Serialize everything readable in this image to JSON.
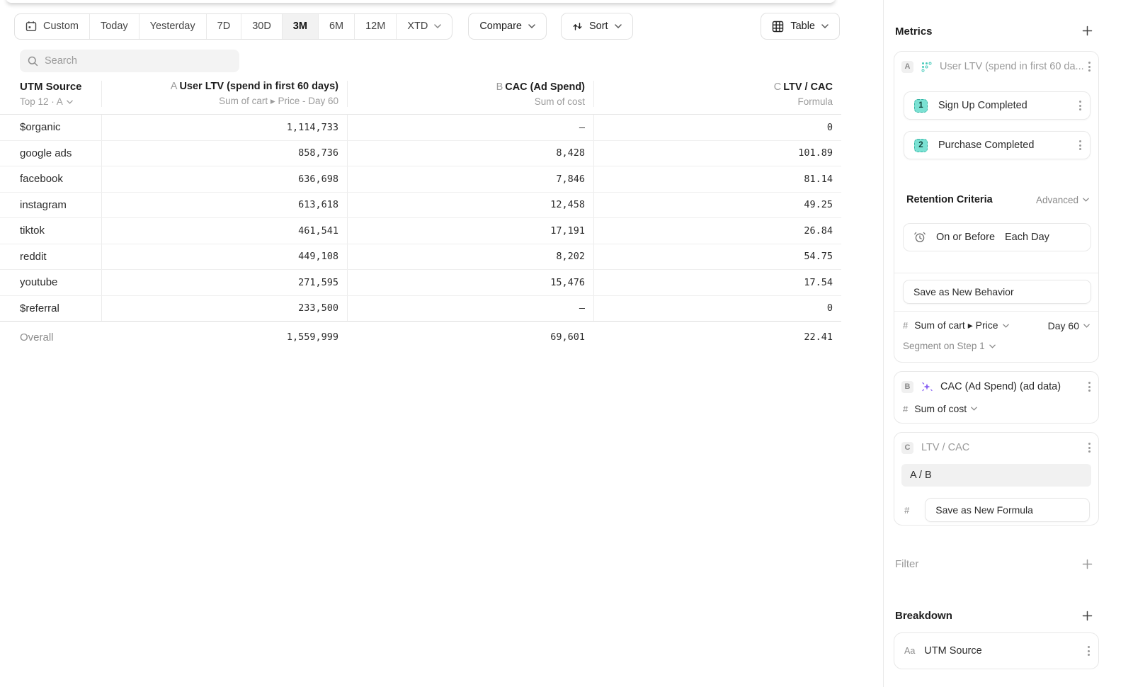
{
  "toolbar": {
    "date_ranges": [
      {
        "label": "Custom",
        "selected": false
      },
      {
        "label": "Today",
        "selected": false
      },
      {
        "label": "Yesterday",
        "selected": false
      },
      {
        "label": "7D",
        "selected": false
      },
      {
        "label": "30D",
        "selected": false
      },
      {
        "label": "3M",
        "selected": true
      },
      {
        "label": "6M",
        "selected": false
      },
      {
        "label": "12M",
        "selected": false
      },
      {
        "label": "XTD",
        "selected": false
      }
    ],
    "compare_label": "Compare",
    "sort_label": "Sort",
    "view_label": "Table"
  },
  "search": {
    "placeholder": "Search"
  },
  "table": {
    "row_dimension": {
      "title": "UTM Source",
      "subtitle": "Top 12 · A"
    },
    "columns": [
      {
        "letter": "A",
        "title": "User LTV (spend in first 60 days)",
        "subtitle": "Sum of cart ▸ Price - Day 60"
      },
      {
        "letter": "B",
        "title": "CAC (Ad Spend)",
        "subtitle": "Sum of cost"
      },
      {
        "letter": "C",
        "title": "LTV / CAC",
        "subtitle": "Formula"
      }
    ],
    "rows": [
      {
        "label": "$organic",
        "values": [
          "1,114,733",
          "–",
          "0"
        ]
      },
      {
        "label": "google ads",
        "values": [
          "858,736",
          "8,428",
          "101.89"
        ]
      },
      {
        "label": "facebook",
        "values": [
          "636,698",
          "7,846",
          "81.14"
        ]
      },
      {
        "label": "instagram",
        "values": [
          "613,618",
          "12,458",
          "49.25"
        ]
      },
      {
        "label": "tiktok",
        "values": [
          "461,541",
          "17,191",
          "26.84"
        ]
      },
      {
        "label": "reddit",
        "values": [
          "449,108",
          "8,202",
          "54.75"
        ]
      },
      {
        "label": "youtube",
        "values": [
          "271,595",
          "15,476",
          "17.54"
        ]
      },
      {
        "label": "$referral",
        "values": [
          "233,500",
          "–",
          "0"
        ]
      }
    ],
    "overall": {
      "label": "Overall",
      "values": [
        "1,559,999",
        "69,601",
        "22.41"
      ]
    }
  },
  "sidebar": {
    "metrics_title": "Metrics",
    "metric_a": {
      "letter": "A",
      "title": "User LTV (spend in first 60 da...",
      "steps": [
        {
          "number": "1",
          "label": "Sign Up Completed"
        },
        {
          "number": "2",
          "label": "Purchase Completed"
        }
      ],
      "retention_label": "Retention Criteria",
      "retention_mode": "Advanced",
      "criteria": {
        "condition": "On or Before",
        "window": "Each Day"
      },
      "save_behavior_label": "Save as New Behavior",
      "measurement": {
        "hash": "#",
        "property": "Sum of cart ▸ Price",
        "window": "Day 60"
      },
      "segment_label": "Segment on Step 1"
    },
    "metric_b": {
      "letter": "B",
      "title": "CAC (Ad Spend) (ad data)",
      "measurement": {
        "hash": "#",
        "property": "Sum of cost"
      }
    },
    "metric_c": {
      "letter": "C",
      "title": "LTV / CAC",
      "formula": "A / B",
      "hash": "#",
      "save_formula_label": "Save as New Formula"
    },
    "filter_title": "Filter",
    "breakdown_title": "Breakdown",
    "breakdown_items": [
      {
        "type": "Aa",
        "label": "UTM Source"
      }
    ]
  },
  "colors": {
    "accent_teal": "#7be1d3",
    "accent_purple": "#8a63f3",
    "selected_segment_bg": "#f2f2f2",
    "border": "#e8e8e8",
    "text_gray": "#9a9a9a"
  }
}
